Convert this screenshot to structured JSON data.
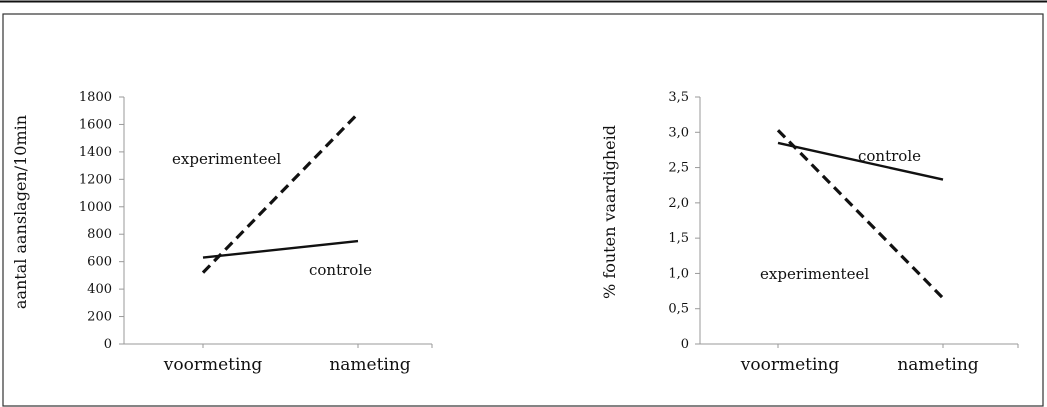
{
  "chart_data": [
    {
      "type": "line",
      "title": "",
      "xlabel": "",
      "ylabel": "aantal aanslagen/10min",
      "categories": [
        "voormeting",
        "nameting"
      ],
      "yticks": [
        "0",
        "200",
        "400",
        "600",
        "800",
        "1000",
        "1200",
        "1400",
        "1600",
        "1800"
      ],
      "ylim": [
        0,
        1800
      ],
      "grid": false,
      "series": [
        {
          "name": "experimenteel",
          "values": [
            520,
            1680
          ],
          "style": "dashed",
          "color": "#111111"
        },
        {
          "name": "controle",
          "values": [
            630,
            750
          ],
          "style": "solid",
          "color": "#111111"
        }
      ]
    },
    {
      "type": "line",
      "title": "",
      "xlabel": "",
      "ylabel": "% fouten vaardigheid",
      "categories": [
        "voormeting",
        "nameting"
      ],
      "yticks": [
        "0",
        "0,5",
        "1,0",
        "1,5",
        "2,0",
        "2,5",
        "3,0",
        "3,5"
      ],
      "ylim": [
        0,
        3.5
      ],
      "grid": false,
      "series": [
        {
          "name": "controle",
          "values": [
            2.85,
            2.33
          ],
          "style": "solid",
          "color": "#111111"
        },
        {
          "name": "experimenteel",
          "values": [
            3.03,
            0.65
          ],
          "style": "dashed",
          "color": "#111111"
        }
      ]
    }
  ]
}
